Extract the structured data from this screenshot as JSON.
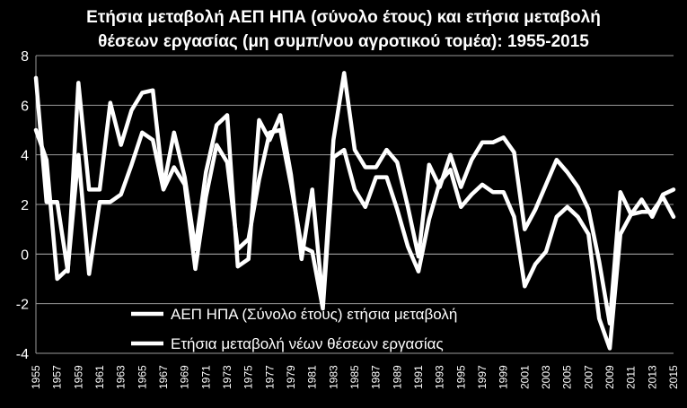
{
  "chart_data": {
    "type": "line",
    "title_line1": "Ετήσια μεταβολή ΑΕΠ ΗΠΑ (σύνολο έτους) και ετήσια μεταβολή",
    "title_line2": "θέσεων εργασίας (μη συμπ/νου αγροτικού τομέα):  1955-2015",
    "ylim": [
      -4,
      8
    ],
    "yticks": [
      -4,
      -2,
      0,
      2,
      4,
      6,
      8
    ],
    "x": [
      1955,
      1956,
      1957,
      1958,
      1959,
      1960,
      1961,
      1962,
      1963,
      1964,
      1965,
      1966,
      1967,
      1968,
      1969,
      1970,
      1971,
      1972,
      1973,
      1974,
      1975,
      1976,
      1977,
      1978,
      1979,
      1980,
      1981,
      1982,
      1983,
      1984,
      1985,
      1986,
      1987,
      1988,
      1989,
      1990,
      1991,
      1992,
      1993,
      1994,
      1995,
      1996,
      1997,
      1998,
      1999,
      2000,
      2001,
      2002,
      2003,
      2004,
      2005,
      2006,
      2007,
      2008,
      2009,
      2010,
      2011,
      2012,
      2013,
      2014,
      2015
    ],
    "xticks": [
      1955,
      1957,
      1959,
      1961,
      1963,
      1965,
      1967,
      1969,
      1971,
      1973,
      1975,
      1977,
      1979,
      1981,
      1983,
      1985,
      1987,
      1989,
      1991,
      1993,
      1995,
      1997,
      1999,
      2001,
      2003,
      2005,
      2007,
      2009,
      2011,
      2013,
      2015
    ],
    "grid": true,
    "legend_position": "bottom-center",
    "line_color": "#ffffff",
    "series": [
      {
        "name": "ΑΕΠ ΗΠΑ (Σύνολο έτους) ετήσια μεταβολή",
        "values": [
          7.1,
          2.1,
          2.1,
          -0.7,
          6.9,
          2.6,
          2.6,
          6.1,
          4.4,
          5.8,
          6.5,
          6.6,
          2.7,
          4.9,
          3.1,
          0.2,
          3.3,
          5.2,
          5.6,
          -0.5,
          -0.2,
          5.4,
          4.6,
          5.6,
          3.2,
          -0.2,
          2.6,
          -1.9,
          4.6,
          7.3,
          4.2,
          3.5,
          3.5,
          4.2,
          3.7,
          1.9,
          -0.1,
          3.6,
          2.7,
          4.0,
          2.7,
          3.8,
          4.5,
          4.5,
          4.7,
          4.1,
          1.0,
          1.8,
          2.8,
          3.8,
          3.3,
          2.7,
          1.8,
          -0.3,
          -2.8,
          2.5,
          1.6,
          2.2,
          1.5,
          2.4,
          2.6
        ]
      },
      {
        "name": "Ετήσια μεταβολή νέων θέσεων εργασίας",
        "values": [
          5.0,
          3.8,
          -1.0,
          -0.6,
          4.0,
          -0.8,
          2.1,
          2.1,
          2.4,
          3.6,
          4.9,
          4.6,
          2.6,
          3.5,
          2.8,
          -0.6,
          2.3,
          4.4,
          3.7,
          0.2,
          0.6,
          3.0,
          4.9,
          5.0,
          2.8,
          0.3,
          0.1,
          -2.2,
          3.9,
          4.2,
          2.6,
          1.9,
          3.1,
          3.1,
          1.8,
          0.3,
          -0.7,
          1.4,
          2.9,
          3.4,
          1.9,
          2.4,
          2.8,
          2.5,
          2.5,
          1.5,
          -1.3,
          -0.4,
          0.1,
          1.5,
          1.9,
          1.5,
          0.8,
          -2.6,
          -3.8,
          0.8,
          1.6,
          1.7,
          1.7,
          2.3,
          1.5
        ]
      }
    ]
  }
}
